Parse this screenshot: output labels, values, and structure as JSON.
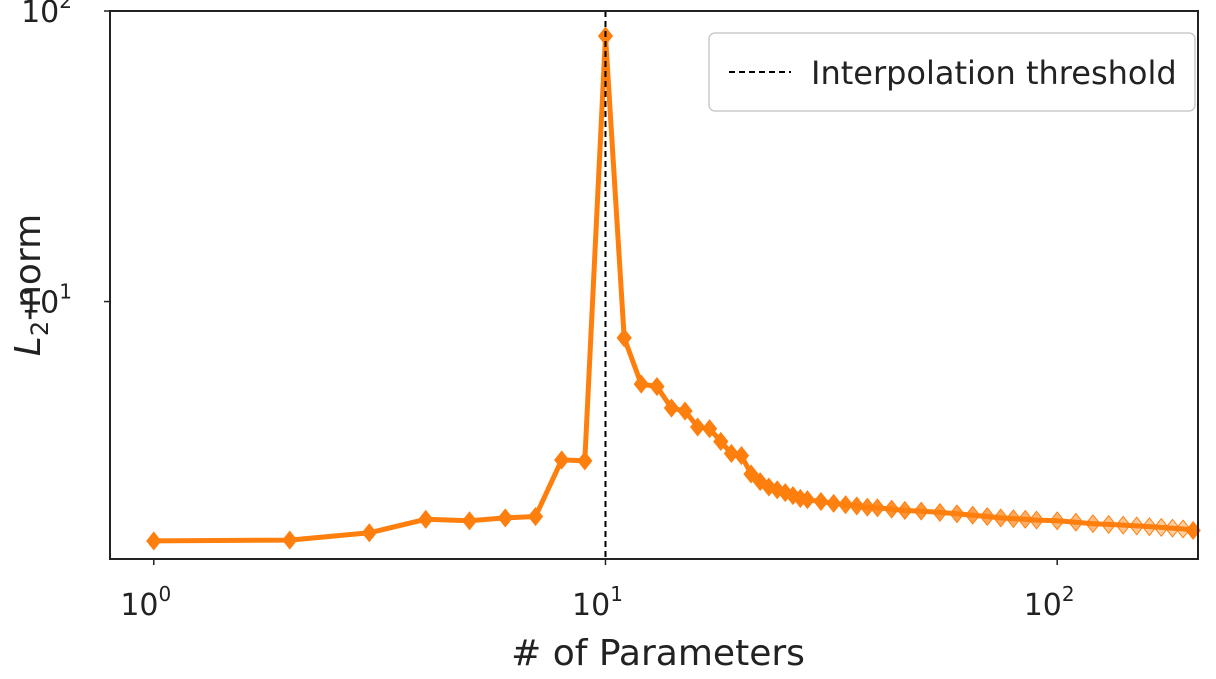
{
  "chart_data": {
    "type": "line",
    "xscale": "log",
    "yscale": "log",
    "xlim": [
      0.8,
      205
    ],
    "ylim": [
      1.3,
      100
    ],
    "xlabel": "# of Parameters",
    "ylabel": "L2-norm",
    "x_ticks": [
      {
        "base": "10",
        "exp": "0",
        "value": 1
      },
      {
        "base": "10",
        "exp": "1",
        "value": 10
      },
      {
        "base": "10",
        "exp": "2",
        "value": 100
      }
    ],
    "y_ticks": [
      {
        "base": "10",
        "exp": "1",
        "value": 10
      },
      {
        "base": "10",
        "exp": "2",
        "value": 100
      }
    ],
    "threshold_x": 10,
    "legend": {
      "label": "Interpolation threshold",
      "placement": "top-right"
    },
    "grid": false,
    "series_color": "#ff7f0e",
    "points": [
      [
        1,
        1.5
      ],
      [
        2,
        1.51
      ],
      [
        3,
        1.6
      ],
      [
        4,
        1.78
      ],
      [
        5,
        1.76
      ],
      [
        6,
        1.8
      ],
      [
        7,
        1.82
      ],
      [
        8,
        2.85
      ],
      [
        9,
        2.83
      ],
      [
        10,
        82
      ],
      [
        11,
        7.5
      ],
      [
        12,
        5.2
      ],
      [
        13,
        5.1
      ],
      [
        14,
        4.3
      ],
      [
        15,
        4.2
      ],
      [
        16,
        3.7
      ],
      [
        17,
        3.65
      ],
      [
        18,
        3.3
      ],
      [
        19,
        3.0
      ],
      [
        20,
        2.95
      ],
      [
        21,
        2.55
      ],
      [
        22,
        2.4
      ],
      [
        23,
        2.3
      ],
      [
        24,
        2.25
      ],
      [
        25,
        2.2
      ],
      [
        26,
        2.15
      ],
      [
        27,
        2.1
      ],
      [
        28,
        2.08
      ],
      [
        30,
        2.05
      ],
      [
        32,
        2.02
      ],
      [
        34,
        2.0
      ],
      [
        36,
        1.98
      ],
      [
        38,
        1.96
      ],
      [
        40,
        1.95
      ],
      [
        43,
        1.93
      ],
      [
        46,
        1.91
      ],
      [
        50,
        1.9
      ],
      [
        55,
        1.88
      ],
      [
        60,
        1.86
      ],
      [
        65,
        1.84
      ],
      [
        70,
        1.82
      ],
      [
        75,
        1.8
      ],
      [
        80,
        1.79
      ],
      [
        85,
        1.78
      ],
      [
        90,
        1.77
      ],
      [
        100,
        1.76
      ],
      [
        110,
        1.74
      ],
      [
        120,
        1.72
      ],
      [
        130,
        1.71
      ],
      [
        140,
        1.7
      ],
      [
        150,
        1.69
      ],
      [
        160,
        1.68
      ],
      [
        170,
        1.67
      ],
      [
        180,
        1.66
      ],
      [
        190,
        1.65
      ],
      [
        200,
        1.63
      ]
    ]
  }
}
